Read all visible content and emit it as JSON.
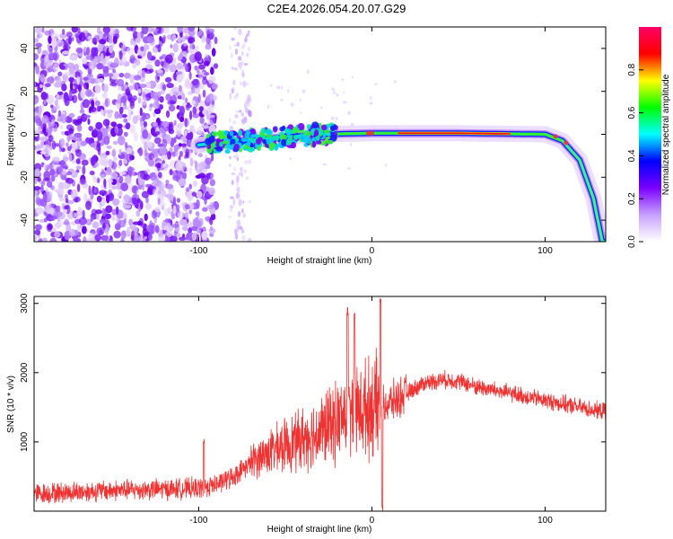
{
  "title": "C2E4.2026.054.20.07.G29",
  "chart_data": [
    {
      "type": "heatmap",
      "title": "C2E4.2026.054.20.07.G29",
      "xlabel": "Height of straight line (km)",
      "ylabel": "Frequency (Hz)",
      "xlim": [
        -195,
        135
      ],
      "ylim": [
        -50,
        50
      ],
      "xticks": [
        -100,
        0,
        100
      ],
      "yticks": [
        -40,
        -20,
        0,
        20,
        40
      ],
      "colorbar": {
        "label": "Normalized spectral amplitude",
        "range": [
          0.0,
          1.0
        ],
        "ticks": [
          0.0,
          0.2,
          0.4,
          0.6,
          0.8
        ],
        "tick_labels": [
          "0.0",
          "0.2",
          "0.4",
          "0.6",
          "0.8"
        ],
        "colors": [
          "#ffffff",
          "#c8a0ff",
          "#7a00ff",
          "#0000ff",
          "#00ffff",
          "#00ff00",
          "#ffff00",
          "#ff0000",
          "#ff0066"
        ]
      },
      "ridge": {
        "description_points_km_hz": [
          [
            -100,
            -5
          ],
          [
            -90,
            -4
          ],
          [
            -60,
            -2
          ],
          [
            -30,
            0
          ],
          [
            0,
            0.5
          ],
          [
            50,
            0.5
          ],
          [
            100,
            0
          ],
          [
            110,
            -3
          ],
          [
            120,
            -12
          ],
          [
            128,
            -30
          ],
          [
            133,
            -50
          ]
        ]
      }
    },
    {
      "type": "line",
      "xlabel": "Height of straight line (km)",
      "ylabel": "SNR (10 * v/v)",
      "xlim": [
        -195,
        135
      ],
      "ylim": [
        0,
        3100
      ],
      "xticks": [
        -100,
        0,
        100
      ],
      "yticks": [
        1000,
        2000,
        3000
      ],
      "series": [
        {
          "name": "SNR",
          "color": "#ee3333",
          "envelope_km_snr": [
            [
              -195,
              250
            ],
            [
              -150,
              300
            ],
            [
              -100,
              330
            ],
            [
              -90,
              380
            ],
            [
              -80,
              500
            ],
            [
              -70,
              700
            ],
            [
              -60,
              850
            ],
            [
              -50,
              950
            ],
            [
              -40,
              1050
            ],
            [
              -30,
              1150
            ],
            [
              -20,
              1300
            ],
            [
              -10,
              1450
            ],
            [
              0,
              1500
            ],
            [
              10,
              1550
            ],
            [
              20,
              1700
            ],
            [
              30,
              1850
            ],
            [
              40,
              1900
            ],
            [
              50,
              1880
            ],
            [
              60,
              1800
            ],
            [
              70,
              1750
            ],
            [
              80,
              1700
            ],
            [
              90,
              1650
            ],
            [
              100,
              1600
            ],
            [
              110,
              1550
            ],
            [
              120,
              1500
            ],
            [
              130,
              1450
            ],
            [
              135,
              1440
            ]
          ],
          "spikes_km_snr": [
            [
              -97,
              1100
            ],
            [
              -14,
              2950
            ],
            [
              -10,
              2900
            ],
            [
              5,
              3100
            ],
            [
              6,
              100
            ]
          ]
        }
      ]
    }
  ]
}
